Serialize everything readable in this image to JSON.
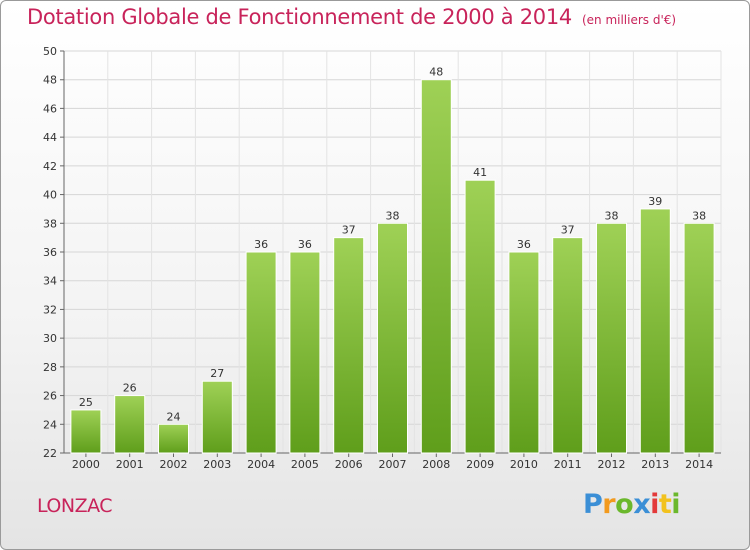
{
  "header": {
    "title": "Dotation Globale de Fonctionnement de 2000 à 2014",
    "unit": "(en milliers d'€)"
  },
  "footer": {
    "commune": "LONZAC",
    "logo": "Proxiti"
  },
  "colors": {
    "title": "#c8235a",
    "bar_top": "#9fd156",
    "bar_bottom": "#5f9e1b"
  },
  "chart_data": {
    "type": "bar",
    "title": "Dotation Globale de Fonctionnement de 2000 à 2014",
    "xlabel": "",
    "ylabel": "",
    "categories": [
      "2000",
      "2001",
      "2002",
      "2003",
      "2004",
      "2005",
      "2006",
      "2007",
      "2008",
      "2009",
      "2010",
      "2011",
      "2012",
      "2013",
      "2014"
    ],
    "values": [
      25,
      26,
      24,
      27,
      36,
      36,
      37,
      38,
      48,
      41,
      36,
      37,
      38,
      39,
      38
    ],
    "ylim": [
      22,
      50
    ],
    "yticks": [
      22,
      24,
      26,
      28,
      30,
      32,
      34,
      36,
      38,
      40,
      42,
      44,
      46,
      48,
      50
    ],
    "grid": true
  }
}
